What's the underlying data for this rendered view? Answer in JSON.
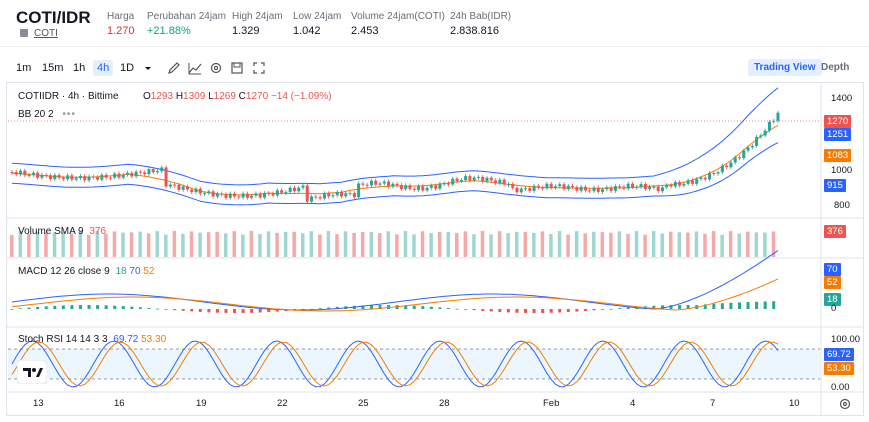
{
  "header": {
    "pair": "COTI/IDR",
    "coin_link": "COTI",
    "stats": [
      {
        "label": "Harga",
        "value": "1.270",
        "color": "#e03131"
      },
      {
        "label": "Perubahan 24jam",
        "value": "+21.88%",
        "color": "#0ca678"
      },
      {
        "label": "High 24jam",
        "value": "1.329",
        "color": "#131722"
      },
      {
        "label": "Low 24jam",
        "value": "1.042",
        "color": "#131722"
      },
      {
        "label": "Volume 24jam(COTI)",
        "value": "2.453",
        "color": "#131722"
      },
      {
        "label": "24h Bab(IDR)",
        "value": "2.838.816",
        "color": "#131722"
      }
    ]
  },
  "toolbar": {
    "timeframes": [
      "1m",
      "15m",
      "1h",
      "4h",
      "1D"
    ],
    "active_timeframe": "4h",
    "icons": [
      "chevron-down-icon",
      "draw-icon",
      "indicator-icon",
      "settings-icon",
      "save-icon",
      "fullscreen-icon"
    ],
    "views": [
      "Trading View",
      "Depth"
    ],
    "active_view": "Trading View"
  },
  "main_legend": {
    "symbol": "COTIIDR · 4h · Bittime",
    "o_label": "O",
    "o": "1293",
    "h_label": "H",
    "h": "1309",
    "l_label": "L",
    "l": "1269",
    "c_label": "C",
    "c": "1270",
    "change": "−14 (−1.09%)",
    "bb": "BB 20 2"
  },
  "volume_legend": {
    "label": "Volume SMA 9",
    "value": "376"
  },
  "macd_legend": {
    "label": "MACD 12 26 close 9",
    "v1": "18",
    "v2": "70",
    "v3": "52"
  },
  "stoch_legend": {
    "label": "Stoch RSI 14 14 3 3",
    "v1": "69.72",
    "v2": "53.30"
  },
  "price_axis": {
    "ticks": [
      "1400",
      "1000",
      "800"
    ],
    "tags": [
      {
        "text": "1270",
        "color": "#ef5350"
      },
      {
        "text": "1251",
        "color": "#2962ff"
      },
      {
        "text": "1083",
        "color": "#f57c00"
      },
      {
        "text": "915",
        "color": "#2962ff"
      }
    ]
  },
  "volume_axis": {
    "tag": "376",
    "tag_color": "#ef5350"
  },
  "macd_axis": {
    "tags": [
      {
        "text": "70",
        "color": "#2962ff"
      },
      {
        "text": "52",
        "color": "#f57c00"
      },
      {
        "text": "18",
        "color": "#26a69a"
      }
    ],
    "zero": "0"
  },
  "stoch_axis": {
    "ticks": [
      "100.00",
      "0.00"
    ],
    "tags": [
      {
        "text": "69.72",
        "color": "#2962ff"
      },
      {
        "text": "53.30",
        "color": "#f57c00"
      }
    ]
  },
  "time_axis": [
    "13",
    "16",
    "19",
    "22",
    "25",
    "28",
    "Feb",
    "4",
    "7",
    "10"
  ],
  "colors": {
    "up": "#26a69a",
    "down": "#ef5350",
    "bb": "#2962ff",
    "ma": "#f57c00"
  }
}
